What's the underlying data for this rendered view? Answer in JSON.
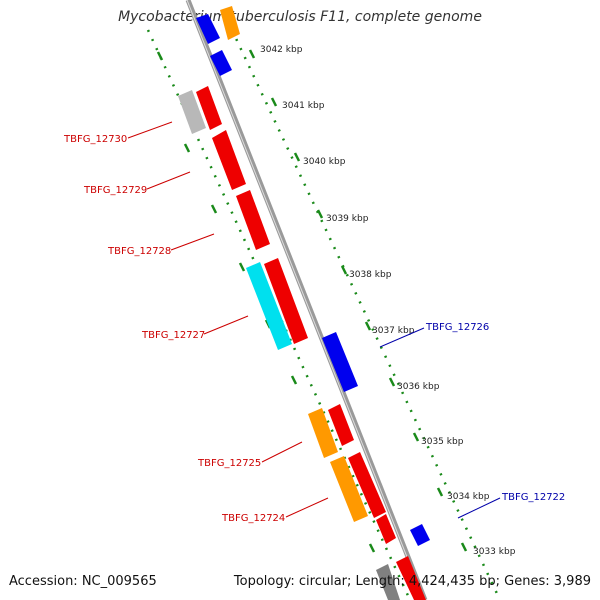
{
  "title": "Mycobacterium tuberculosis F11, complete genome",
  "footer": {
    "accession": "Accession: NC_009565",
    "topology": "Topology: circular; Length: 4,424,435 bp; Genes: 3,989"
  },
  "colors": {
    "backbone": "#9a9a9a",
    "tick_marks": "#1a8a1a",
    "label_left": "#cc0000",
    "label_right": "#0000aa",
    "gene_red": "#ee0000",
    "gene_blue": "#0000ee",
    "gene_orange": "#ff9900",
    "gene_cyan": "#00e0ee",
    "gene_gray": "#b8b8b8"
  },
  "kbp_ticks": [
    "3042 kbp",
    "3041 kbp",
    "3040 kbp",
    "3039 kbp",
    "3038 kbp",
    "3037 kbp",
    "3036 kbp",
    "3035 kbp",
    "3034 kbp",
    "3033 kbp"
  ],
  "gene_labels_left": [
    "TBFG_12730",
    "TBFG_12729",
    "TBFG_12728",
    "TBFG_12727",
    "TBFG_12725",
    "TBFG_12724"
  ],
  "gene_labels_right": [
    "TBFG_12726",
    "TBFG_12722"
  ]
}
